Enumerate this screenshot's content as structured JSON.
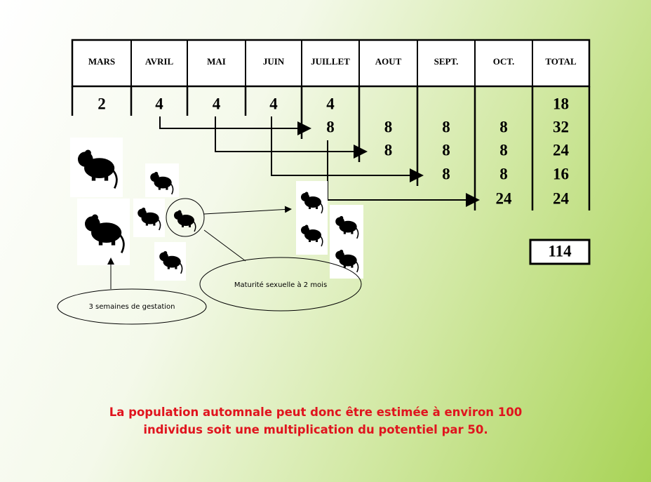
{
  "table": {
    "headers": [
      "MARS",
      "AVRIL",
      "MAI",
      "JUIN",
      "JUILLET",
      "AOUT",
      "SEPT.",
      "OCT.",
      "TOTAL"
    ],
    "rows": [
      [
        2,
        4,
        4,
        4,
        4,
        null,
        null,
        null,
        18
      ],
      [
        null,
        null,
        null,
        null,
        8,
        8,
        8,
        8,
        32
      ],
      [
        null,
        null,
        null,
        null,
        null,
        8,
        8,
        8,
        24
      ],
      [
        null,
        null,
        null,
        null,
        null,
        null,
        8,
        8,
        16
      ],
      [
        null,
        null,
        null,
        null,
        null,
        null,
        null,
        24,
        24
      ]
    ],
    "grand_total": 114
  },
  "notes": {
    "maturity": "Maturité sexuelle à 2 mois",
    "gestation": "3 semaines de gestation"
  },
  "conclusion": "La population automnale peut donc être estimée à environ 100 individus soit une multiplication du potentiel par 50."
}
